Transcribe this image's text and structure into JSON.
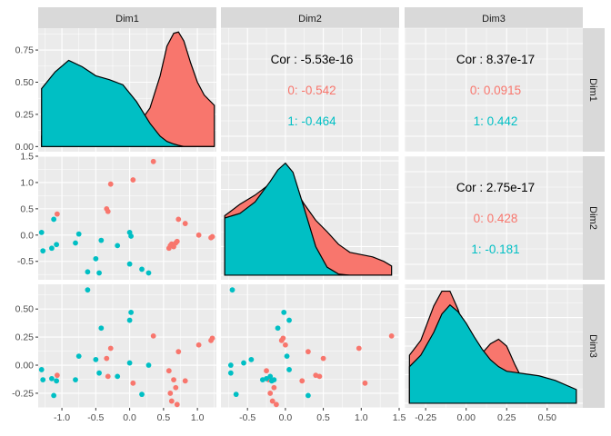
{
  "chart_data": {
    "type": "scatter-matrix",
    "variables": [
      "Dim1",
      "Dim2",
      "Dim3"
    ],
    "groups": [
      {
        "name": "0",
        "color": "#F8766D"
      },
      {
        "name": "1",
        "color": "#00BFC4"
      }
    ],
    "axes": {
      "Dim1": {
        "range": [
          -1.35,
          1.28
        ],
        "ticks": [
          -1.0,
          -0.5,
          0.0,
          0.5,
          1.0
        ],
        "tick_labels": [
          "-1.0",
          "-0.5",
          "0.0",
          "0.5",
          "1.0"
        ]
      },
      "Dim2": {
        "range": [
          -0.85,
          1.5
        ],
        "ticks": [
          -0.5,
          0.0,
          0.5,
          1.0,
          1.5
        ],
        "tick_labels": [
          "-0.5",
          "0.0",
          "0.5",
          "1.0",
          "1.5"
        ]
      },
      "Dim3": {
        "range": [
          -0.38,
          0.72
        ],
        "ticks": [
          -0.25,
          0.0,
          0.25,
          0.5
        ],
        "tick_labels": [
          "-0.25",
          "0.00",
          "0.25",
          "0.50"
        ]
      },
      "density_dim1": {
        "range": [
          -0.04,
          0.92
        ],
        "ticks": [
          0.0,
          0.25,
          0.5,
          0.75
        ],
        "tick_labels": [
          "0.00",
          "0.25",
          "0.50",
          "0.75"
        ]
      }
    },
    "correlations": [
      {
        "pair": [
          "Dim1",
          "Dim2"
        ],
        "label": "Cor : -5.53e-16",
        "group_labels": [
          {
            "group": "0",
            "text": "0: -0.542"
          },
          {
            "group": "1",
            "text": "1: -0.464"
          }
        ]
      },
      {
        "pair": [
          "Dim1",
          "Dim3"
        ],
        "label": "Cor : 8.37e-17",
        "group_labels": [
          {
            "group": "0",
            "text": "0: 0.0915"
          },
          {
            "group": "1",
            "text": "1: 0.442"
          }
        ]
      },
      {
        "pair": [
          "Dim2",
          "Dim3"
        ],
        "label": "Cor : 2.75e-17",
        "group_labels": [
          {
            "group": "0",
            "text": "0: 0.428"
          },
          {
            "group": "1",
            "text": "1: -0.181"
          }
        ]
      }
    ],
    "points": {
      "0": [
        {
          "Dim1": 0.35,
          "Dim2": 1.4,
          "Dim3": 0.26
        },
        {
          "Dim1": 0.05,
          "Dim2": 1.05,
          "Dim3": -0.16
        },
        {
          "Dim1": -0.28,
          "Dim2": 0.97,
          "Dim3": 0.15
        },
        {
          "Dim1": -0.34,
          "Dim2": 0.5,
          "Dim3": 0.06
        },
        {
          "Dim1": -0.32,
          "Dim2": 0.45,
          "Dim3": -0.1
        },
        {
          "Dim1": -1.07,
          "Dim2": 0.4,
          "Dim3": -0.09
        },
        {
          "Dim1": 0.72,
          "Dim2": 0.3,
          "Dim3": 0.12
        },
        {
          "Dim1": 0.82,
          "Dim2": 0.22,
          "Dim3": -0.14
        },
        {
          "Dim1": 1.02,
          "Dim2": 0.0,
          "Dim3": 0.18
        },
        {
          "Dim1": 1.2,
          "Dim2": -0.05,
          "Dim3": 0.22
        },
        {
          "Dim1": 1.22,
          "Dim2": -0.03,
          "Dim3": 0.24
        },
        {
          "Dim1": 0.62,
          "Dim2": -0.17,
          "Dim3": -0.32
        },
        {
          "Dim1": 0.6,
          "Dim2": -0.2,
          "Dim3": -0.25
        },
        {
          "Dim1": 0.68,
          "Dim2": -0.15,
          "Dim3": -0.2
        },
        {
          "Dim1": 0.65,
          "Dim2": -0.22,
          "Dim3": -0.13
        },
        {
          "Dim1": 0.7,
          "Dim2": -0.12,
          "Dim3": -0.35
        },
        {
          "Dim1": 0.58,
          "Dim2": -0.25,
          "Dim3": -0.05
        }
      ],
      "1": [
        {
          "Dim1": -1.3,
          "Dim2": 0.05,
          "Dim3": -0.04
        },
        {
          "Dim1": -1.28,
          "Dim2": -0.3,
          "Dim3": -0.13
        },
        {
          "Dim1": -1.12,
          "Dim2": 0.3,
          "Dim3": -0.27
        },
        {
          "Dim1": -1.08,
          "Dim2": -0.18,
          "Dim3": -0.14
        },
        {
          "Dim1": -1.15,
          "Dim2": -0.25,
          "Dim3": -0.12
        },
        {
          "Dim1": -0.8,
          "Dim2": -0.15,
          "Dim3": -0.13
        },
        {
          "Dim1": -0.75,
          "Dim2": 0.02,
          "Dim3": 0.08
        },
        {
          "Dim1": -0.62,
          "Dim2": -0.7,
          "Dim3": 0.67
        },
        {
          "Dim1": -0.5,
          "Dim2": -0.45,
          "Dim3": 0.05
        },
        {
          "Dim1": -0.45,
          "Dim2": -0.72,
          "Dim3": -0.07
        },
        {
          "Dim1": -0.42,
          "Dim2": -0.1,
          "Dim3": 0.33
        },
        {
          "Dim1": 0.0,
          "Dim2": 0.05,
          "Dim3": 0.4
        },
        {
          "Dim1": 0.02,
          "Dim2": -0.02,
          "Dim3": 0.47
        },
        {
          "Dim1": 0.18,
          "Dim2": -0.65,
          "Dim3": -0.26
        },
        {
          "Dim1": 0.28,
          "Dim2": -0.72,
          "Dim3": 0.0
        },
        {
          "Dim1": -0.18,
          "Dim2": -0.2,
          "Dim3": -0.1
        },
        {
          "Dim1": 0.0,
          "Dim2": -0.55,
          "Dim3": 0.02
        }
      ]
    },
    "densities": {
      "Dim1": {
        "x": [
          -1.3,
          -1.1,
          -0.9,
          -0.7,
          -0.5,
          -0.3,
          -0.1,
          0.1,
          0.3,
          0.45,
          0.55,
          0.65,
          0.72,
          0.8,
          0.9,
          1.0,
          1.1,
          1.25
        ],
        "0": [
          0.08,
          0.06,
          0.05,
          0.05,
          0.07,
          0.1,
          0.12,
          0.15,
          0.3,
          0.55,
          0.78,
          0.88,
          0.89,
          0.82,
          0.65,
          0.5,
          0.4,
          0.32
        ],
        "1": [
          0.45,
          0.58,
          0.67,
          0.62,
          0.55,
          0.52,
          0.48,
          0.35,
          0.18,
          0.08,
          0.04,
          0.02,
          0.01,
          0.0,
          0.0,
          0.0,
          0.0,
          0.0
        ],
        "ylim": [
          -0.04,
          0.92
        ]
      },
      "Dim2": {
        "x": [
          -0.8,
          -0.6,
          -0.4,
          -0.2,
          -0.1,
          0.0,
          0.1,
          0.25,
          0.4,
          0.55,
          0.7,
          0.85,
          1.0,
          1.15,
          1.3,
          1.4
        ],
        "0": [
          0.52,
          0.62,
          0.7,
          0.8,
          0.82,
          0.82,
          0.78,
          0.62,
          0.48,
          0.38,
          0.27,
          0.2,
          0.18,
          0.16,
          0.12,
          0.08
        ],
        "1": [
          0.5,
          0.54,
          0.64,
          0.82,
          0.92,
          0.98,
          0.9,
          0.58,
          0.25,
          0.07,
          0.01,
          0.0,
          0.0,
          0.0,
          0.0,
          0.0
        ],
        "ylim": [
          -0.04,
          1.04
        ]
      },
      "Dim3": {
        "x": [
          -0.35,
          -0.28,
          -0.2,
          -0.15,
          -0.1,
          -0.05,
          0.0,
          0.05,
          0.1,
          0.15,
          0.2,
          0.25,
          0.3,
          0.35,
          0.45,
          0.55,
          0.68
        ],
        "0": [
          0.42,
          0.55,
          0.85,
          0.98,
          0.98,
          0.82,
          0.6,
          0.46,
          0.44,
          0.52,
          0.56,
          0.5,
          0.34,
          0.2,
          0.06,
          0.02,
          0.0
        ],
        "1": [
          0.32,
          0.42,
          0.62,
          0.78,
          0.86,
          0.8,
          0.7,
          0.58,
          0.47,
          0.38,
          0.32,
          0.28,
          0.27,
          0.26,
          0.24,
          0.2,
          0.12
        ],
        "ylim": [
          -0.04,
          1.04
        ]
      }
    }
  }
}
